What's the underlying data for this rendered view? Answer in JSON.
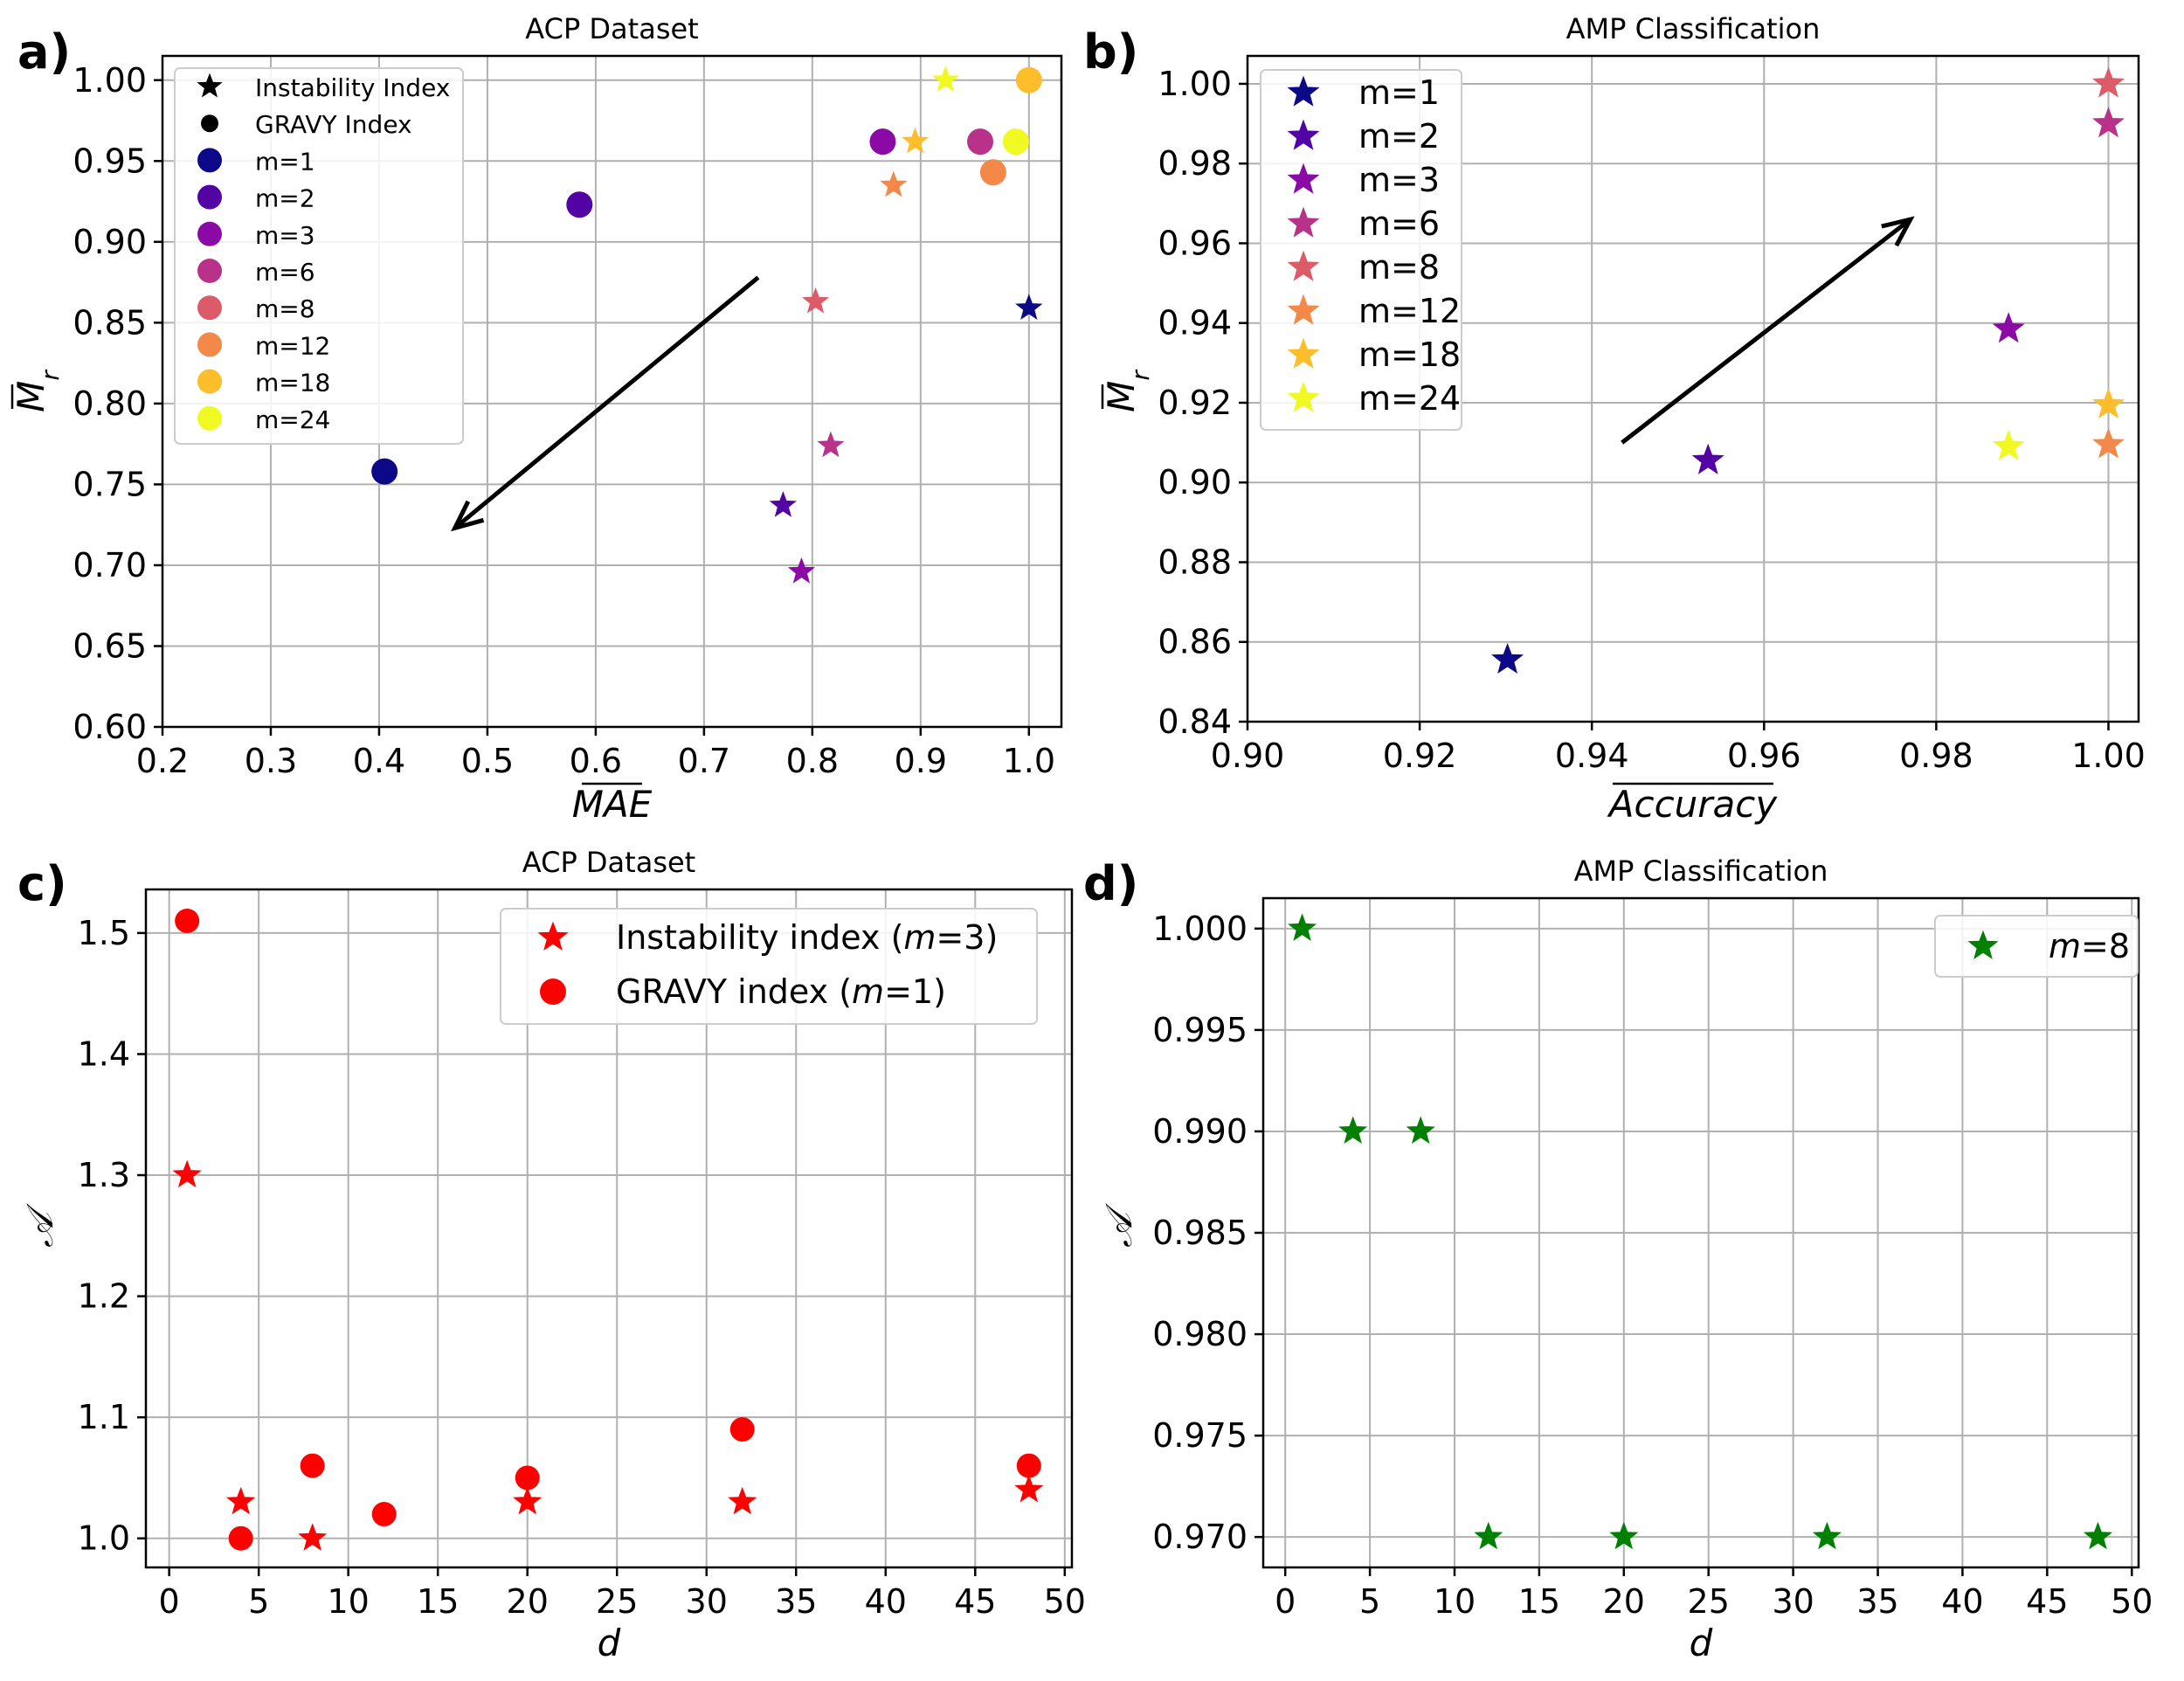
{
  "chart_data": [
    {
      "panel": "a)",
      "type": "scatter",
      "title": "ACP Dataset",
      "xlabel": "MAE",
      "ylabel": "M_r",
      "xlim": [
        0.2,
        1.03
      ],
      "ylim": [
        0.6,
        1.015
      ],
      "xticks": [
        "0.2",
        "0.3",
        "0.4",
        "0.5",
        "0.6",
        "0.7",
        "0.8",
        "0.9",
        "1.0"
      ],
      "yticks": [
        "0.60",
        "0.65",
        "0.70",
        "0.75",
        "0.80",
        "0.85",
        "0.90",
        "0.95",
        "1.00"
      ],
      "legend": [
        "Instability Index",
        "GRAVY Index",
        "m=1",
        "m=2",
        "m=3",
        "m=6",
        "m=8",
        "m=12",
        "m=18",
        "m=24"
      ],
      "legend_position": "top-left",
      "arrow": {
        "from": [
          0.75,
          0.878
        ],
        "to": [
          0.47,
          0.723
        ],
        "direction": "down-left"
      },
      "series": [
        {
          "name": "m=1",
          "color": "#0d0887",
          "stars": [
            [
              1.0,
              0.859
            ]
          ],
          "circles": [
            [
              0.405,
              0.758
            ]
          ]
        },
        {
          "name": "m=2",
          "color": "#5302a3",
          "stars": [
            [
              0.773,
              0.737
            ]
          ],
          "circles": [
            [
              0.585,
              0.923
            ]
          ]
        },
        {
          "name": "m=3",
          "color": "#8b0aa5",
          "stars": [
            [
              0.79,
              0.696
            ]
          ],
          "circles": [
            [
              0.865,
              0.962
            ]
          ]
        },
        {
          "name": "m=6",
          "color": "#b83289",
          "stars": [
            [
              0.817,
              0.774
            ]
          ],
          "circles": [
            [
              0.955,
              0.962
            ]
          ]
        },
        {
          "name": "m=8",
          "color": "#db5c68",
          "stars": [
            [
              0.803,
              0.863
            ]
          ],
          "circles": []
        },
        {
          "name": "m=12",
          "color": "#f48849",
          "stars": [
            [
              0.875,
              0.935
            ]
          ],
          "circles": [
            [
              0.967,
              0.943
            ]
          ]
        },
        {
          "name": "m=18",
          "color": "#febd2a",
          "stars": [
            [
              0.895,
              0.962
            ]
          ],
          "circles": [
            [
              1.0,
              1.0
            ]
          ]
        },
        {
          "name": "m=24",
          "color": "#f0f921",
          "stars": [
            [
              0.923,
              1.0
            ]
          ],
          "circles": [
            [
              0.988,
              0.962
            ]
          ]
        }
      ]
    },
    {
      "panel": "b)",
      "type": "scatter",
      "title": "AMP Classification",
      "xlabel": "Accuracy",
      "ylabel": "M_r",
      "xlim": [
        0.9,
        1.0035
      ],
      "ylim": [
        0.84,
        1.007
      ],
      "xticks": [
        "0.90",
        "0.92",
        "0.94",
        "0.96",
        "0.98",
        "1.00"
      ],
      "yticks": [
        "0.84",
        "0.86",
        "0.88",
        "0.90",
        "0.92",
        "0.94",
        "0.96",
        "0.98",
        "1.00"
      ],
      "legend": [
        "m=1",
        "m=2",
        "m=3",
        "m=6",
        "m=8",
        "m=12",
        "m=18",
        "m=24"
      ],
      "legend_position": "top-left",
      "arrow": {
        "from": [
          0.9435,
          0.91
        ],
        "to": [
          0.977,
          0.966
        ],
        "direction": "up-right"
      },
      "series": [
        {
          "name": "m=1",
          "color": "#0d0887",
          "stars": [
            [
              0.9302,
              0.8555
            ]
          ]
        },
        {
          "name": "m=2",
          "color": "#5302a3",
          "stars": [
            [
              0.9535,
              0.9055
            ]
          ]
        },
        {
          "name": "m=3",
          "color": "#8b0aa5",
          "stars": [
            [
              0.9884,
              0.9385
            ]
          ]
        },
        {
          "name": "m=6",
          "color": "#b83289",
          "stars": [
            [
              1.0,
              0.99
            ]
          ]
        },
        {
          "name": "m=8",
          "color": "#db5c68",
          "stars": [
            [
              1.0,
              1.0
            ]
          ]
        },
        {
          "name": "m=12",
          "color": "#f48849",
          "stars": [
            [
              1.0,
              0.9095
            ]
          ]
        },
        {
          "name": "m=18",
          "color": "#febd2a",
          "stars": [
            [
              1.0,
              0.9195
            ]
          ]
        },
        {
          "name": "m=24",
          "color": "#f0f921",
          "stars": [
            [
              0.9884,
              0.909
            ]
          ]
        }
      ]
    },
    {
      "panel": "c)",
      "type": "scatter",
      "title": "ACP Dataset",
      "xlabel": "d",
      "ylabel": "𝒜",
      "xlim": [
        -1.3,
        50.4
      ],
      "ylim": [
        0.976,
        1.536
      ],
      "xticks": [
        "0",
        "5",
        "10",
        "15",
        "20",
        "25",
        "30",
        "35",
        "40",
        "45",
        "50"
      ],
      "yticks": [
        "1.0",
        "1.1",
        "1.2",
        "1.3",
        "1.4",
        "1.5"
      ],
      "legend_position": "top-right",
      "series": [
        {
          "name": "Instability index (m=3)",
          "label_prefix": "Instability index (",
          "label_var": "m",
          "label_suffix": "=3)",
          "marker": "star",
          "color": "#ff0000",
          "x": [
            1,
            4,
            8,
            20,
            32,
            48
          ],
          "y": [
            1.3,
            1.03,
            1.0,
            1.03,
            1.03,
            1.04
          ]
        },
        {
          "name": "GRAVY index (m=1)",
          "label_prefix": "GRAVY index (",
          "label_var": "m",
          "label_suffix": "=1)",
          "marker": "circle",
          "color": "#ff0000",
          "x": [
            1,
            4,
            8,
            12,
            20,
            32,
            48
          ],
          "y": [
            1.51,
            1.0,
            1.06,
            1.02,
            1.05,
            1.09,
            1.06
          ]
        }
      ]
    },
    {
      "panel": "d)",
      "type": "scatter",
      "title": "AMP Classification",
      "xlabel": "d",
      "ylabel": "𝒜",
      "xlim": [
        -1.3,
        50.4
      ],
      "ylim": [
        0.9685,
        1.0015
      ],
      "xticks": [
        "0",
        "5",
        "10",
        "15",
        "20",
        "25",
        "30",
        "35",
        "40",
        "45",
        "50"
      ],
      "yticks": [
        "0.970",
        "0.975",
        "0.980",
        "0.985",
        "0.990",
        "0.995",
        "1.000"
      ],
      "legend_position": "top-right",
      "series": [
        {
          "name": "m=8",
          "label_var": "m",
          "label_suffix": "=8",
          "marker": "star",
          "color": "#008000",
          "x": [
            1,
            4,
            8,
            12,
            20,
            32,
            48
          ],
          "y": [
            1.0,
            0.99,
            0.99,
            0.97,
            0.97,
            0.97,
            0.97
          ]
        }
      ]
    }
  ]
}
